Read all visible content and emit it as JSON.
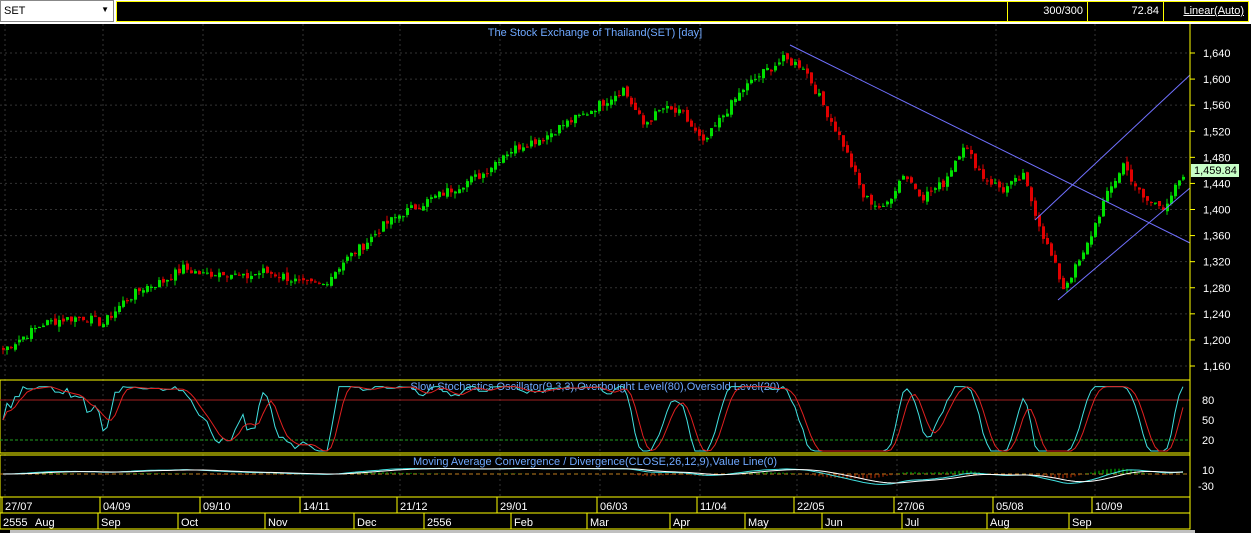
{
  "toolbar": {
    "symbol": "SET",
    "bars": "300/300",
    "value": "72.84",
    "scale": "Linear(Auto)"
  },
  "colors": {
    "up": "#00e000",
    "down": "#e00000",
    "axis": "#ffff00",
    "title": "#6fa8ff",
    "trend": "#7070ff",
    "stochK": "#40e0e0",
    "stochD": "#e02020",
    "lastPrice": "#c8ffc8"
  },
  "chart_data": [
    {
      "type": "candlestick",
      "title": "The Stock Exchange of Thailand(SET) [day]",
      "yticks": [
        1160,
        1200,
        1240,
        1280,
        1320,
        1360,
        1400,
        1440,
        1480,
        1520,
        1560,
        1600,
        1640
      ],
      "ylim": [
        1140,
        1660
      ],
      "last_price": "1,459.84",
      "close": [
        1185,
        1205,
        1225,
        1232,
        1235,
        1225,
        1258,
        1280,
        1290,
        1310,
        1300,
        1305,
        1295,
        1305,
        1298,
        1285,
        1285,
        1320,
        1345,
        1375,
        1395,
        1410,
        1425,
        1440,
        1455,
        1485,
        1500,
        1510,
        1530,
        1545,
        1565,
        1585,
        1530,
        1555,
        1545,
        1500,
        1545,
        1585,
        1610,
        1630,
        1620,
        1560,
        1500,
        1420,
        1400,
        1455,
        1420,
        1440,
        1500,
        1450,
        1430,
        1450,
        1360,
        1280,
        1330,
        1410,
        1470,
        1415,
        1405,
        1450
      ]
    },
    {
      "type": "line",
      "title": "Slow Stochastics Oscillator(9,3,3),Overbought Level(80),Oversold Level(20)",
      "yticks": [
        80,
        50,
        20
      ],
      "levels": [
        80,
        20
      ]
    },
    {
      "type": "line",
      "title": "Moving Average Convergence / Divergence(CLOSE,26,12,9),Value Line(0)",
      "yticks": [
        10,
        -30
      ]
    }
  ],
  "xaxis": {
    "dates": [
      "27/07",
      "04/09",
      "09/10",
      "14/11",
      "21/12",
      "29/01",
      "06/03",
      "11/04",
      "22/05",
      "27/06",
      "05/08",
      "10/09"
    ],
    "months": [
      "2555",
      "Aug",
      "Sep",
      "Oct",
      "Nov",
      "Dec",
      "2556",
      "Feb",
      "Mar",
      "Apr",
      "May",
      "Jun",
      "Jul",
      "Aug",
      "Sep"
    ]
  }
}
